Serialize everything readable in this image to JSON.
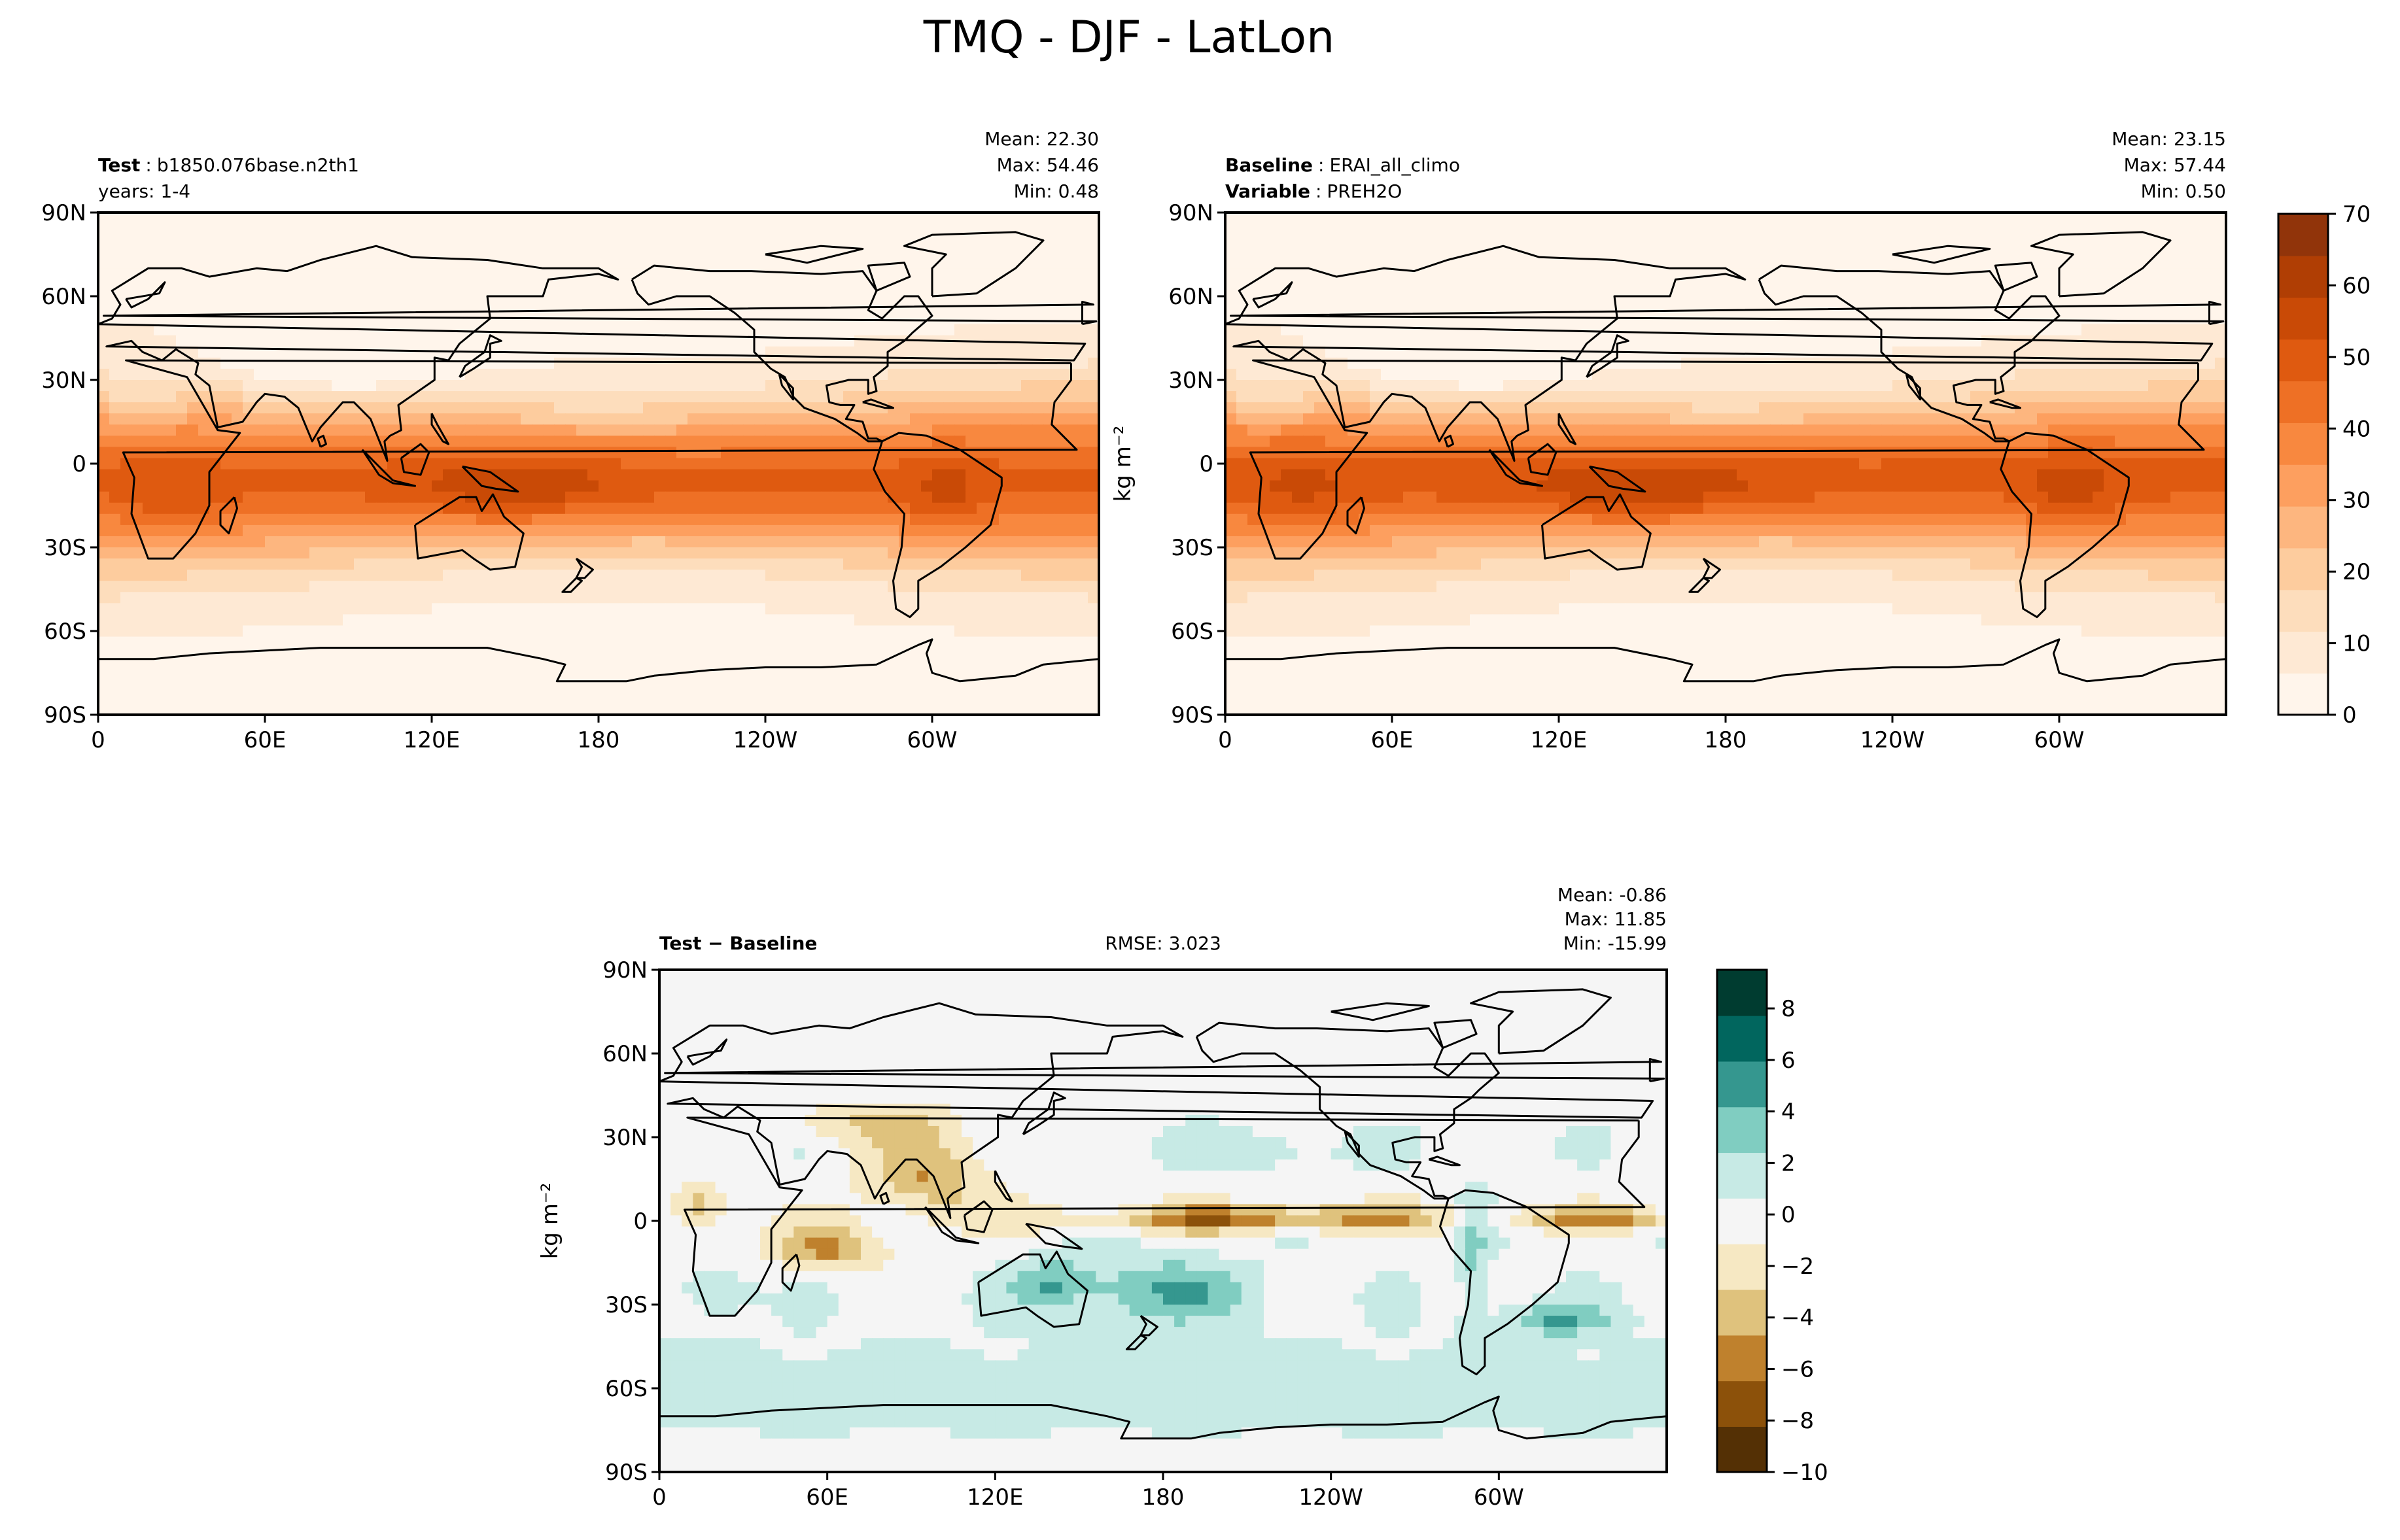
{
  "figure_title": "TMQ - DJF - LatLon",
  "panels": {
    "test": {
      "label_bold": "Test",
      "label_value": "b1850.076base.n2th1",
      "line2": "years: 1-4",
      "stats": [
        "Mean: 22.30",
        "Max: 54.46",
        "Min:  0.48"
      ]
    },
    "baseline": {
      "label_bold": "Baseline",
      "label_value": "ERAI_all_climo",
      "line2_bold": "Variable",
      "line2_value": "PREH2O",
      "stats": [
        "Mean: 23.15",
        "Max: 57.44",
        "Min:  0.50"
      ]
    },
    "diff": {
      "label_bold": "Test − Baseline",
      "rmse": "RMSE: 3.023",
      "stats": [
        "Mean: -0.86",
        "Max: 11.85",
        "Min: -15.99"
      ]
    }
  },
  "units_label": "kg m⁻²",
  "colors": {
    "oranges": [
      "#fff5eb",
      "#fee9d4",
      "#fdddbc",
      "#fdcc9e",
      "#fdb67f",
      "#fd9f5f",
      "#f8883f",
      "#ee7025",
      "#df5a10",
      "#c94a06",
      "#b03e04",
      "#91340a"
    ],
    "diff_brown_teal": [
      "#543005",
      "#8c510a",
      "#bf812d",
      "#dfc27d",
      "#f6e8c3",
      "#f5f5f5",
      "#c7eae5",
      "#80cdc1",
      "#35978f",
      "#01665e",
      "#003c30"
    ]
  },
  "chart_data": [
    {
      "type": "heatmap",
      "name": "test",
      "title": "Test : b1850.076base.n2th1",
      "x_ticks": [
        "0",
        "60E",
        "120E",
        "180",
        "120W",
        "60W"
      ],
      "y_ticks": [
        "90N",
        "60N",
        "30N",
        "0",
        "30S",
        "60S",
        "90S"
      ],
      "x_range": [
        0,
        360
      ],
      "y_range": [
        -90,
        90
      ],
      "colorscale": "oranges",
      "value_range": [
        0,
        70
      ],
      "mean": 22.3,
      "max": 54.46,
      "min": 0.48
    },
    {
      "type": "heatmap",
      "name": "baseline",
      "title": "Baseline : ERAI_all_climo",
      "x_ticks": [
        "0",
        "60E",
        "120E",
        "180",
        "120W",
        "60W"
      ],
      "y_ticks": [
        "90N",
        "60N",
        "30N",
        "0",
        "30S",
        "60S",
        "90S"
      ],
      "x_range": [
        0,
        360
      ],
      "y_range": [
        -90,
        90
      ],
      "colorscale": "oranges",
      "value_range": [
        0,
        70
      ],
      "mean": 23.15,
      "max": 57.44,
      "min": 0.5
    },
    {
      "type": "heatmap",
      "name": "difference",
      "title": "Test − Baseline",
      "x_ticks": [
        "0",
        "60E",
        "120E",
        "180",
        "120W",
        "60W"
      ],
      "y_ticks": [
        "90N",
        "60N",
        "30N",
        "0",
        "30S",
        "60S",
        "90S"
      ],
      "x_range": [
        0,
        360
      ],
      "y_range": [
        -90,
        90
      ],
      "colorscale": "diff_brown_teal",
      "value_range": [
        -10,
        9.5
      ],
      "rmse": 3.023,
      "mean": -0.86,
      "max": 11.85,
      "min": -15.99
    }
  ],
  "colorbars": {
    "top": {
      "ticks": [
        "0",
        "10",
        "20",
        "30",
        "40",
        "50",
        "60",
        "70"
      ],
      "range": [
        0,
        70
      ]
    },
    "diff": {
      "ticks": [
        "−10",
        "−8",
        "−6",
        "−4",
        "−2",
        "0",
        "2",
        "4",
        "6",
        "8"
      ],
      "range": [
        -10,
        9.5
      ]
    }
  }
}
